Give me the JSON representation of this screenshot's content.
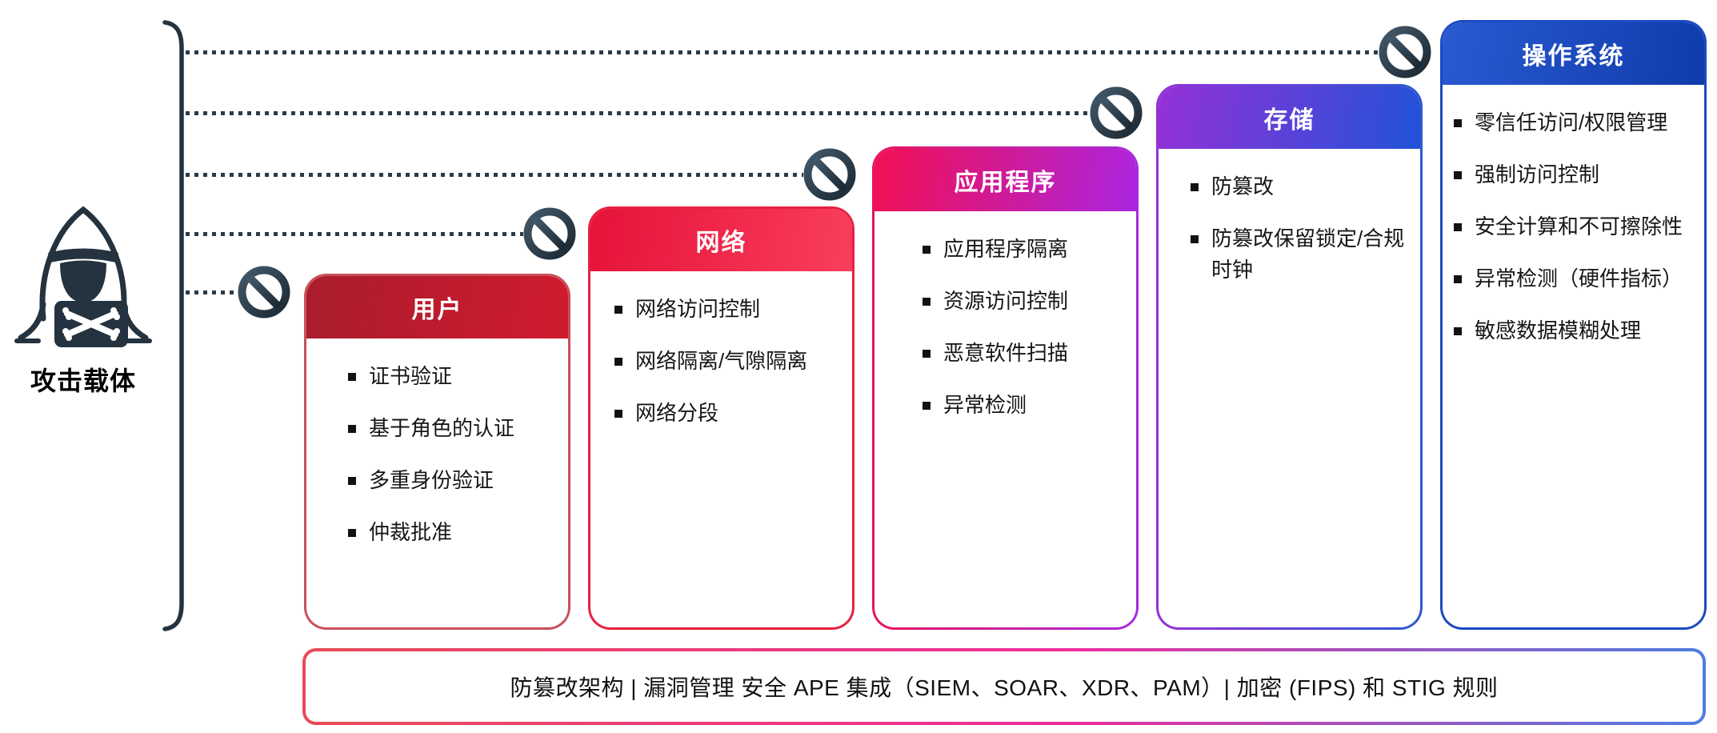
{
  "attacker": {
    "label": "攻击载体",
    "icon": "hacker-icon"
  },
  "layers": [
    {
      "id": "user",
      "title": "用户",
      "items": [
        "证书验证",
        "基于角色的认证",
        "多重身份验证",
        "仲裁批准"
      ],
      "header_gradient": [
        "#a91d2d",
        "#d01b2e"
      ],
      "border_gradient": [
        "#c9505a",
        "#c9505a"
      ]
    },
    {
      "id": "network",
      "title": "网络",
      "items": [
        "网络访问控制",
        "网络隔离/气隙隔离",
        "网络分段"
      ],
      "header_gradient": [
        "#e6123a",
        "#f93e5d"
      ],
      "border_gradient": [
        "#e62140",
        "#e62140"
      ]
    },
    {
      "id": "application",
      "title": "应用程序",
      "items": [
        "应用程序隔离",
        "资源访问控制",
        "恶意软件扫描",
        "异常检测"
      ],
      "header_gradient": [
        "#f21052",
        "#ab25e0"
      ],
      "border_gradient": [
        "#e9145e",
        "#a72ae0"
      ]
    },
    {
      "id": "storage",
      "title": "存储",
      "items": [
        "防篡改",
        "防篡改保留锁定/合规时钟"
      ],
      "header_gradient": [
        "#9431d7",
        "#2152d8"
      ],
      "border_gradient": [
        "#9431d7",
        "#2c58d2"
      ]
    },
    {
      "id": "os",
      "title": "操作系统",
      "items": [
        "零信任访问/权限管理",
        "强制访问控制",
        "安全计算和不可擦除性",
        "异常检测（硬件指标）",
        "敏感数据模糊处理"
      ],
      "header_gradient": [
        "#2a5ad2",
        "#0f3cab"
      ],
      "border_gradient": [
        "#1c4ac2",
        "#1c4ac2"
      ]
    }
  ],
  "prohibition_icon": "no-entry-icon",
  "footer": {
    "text": "防篡改架构 | 漏洞管理 安全 APE 集成（SIEM、SOAR、XDR、PAM）| 加密 (FIPS) 和 STIG 规则"
  },
  "colors": {
    "ink": "#24333f",
    "header_text": "#ffffff",
    "item_text": "#161616",
    "sign_gradient": [
      "#43596a",
      "#1b2832"
    ],
    "footer_border": [
      "#e84b55",
      "#ec2d9c",
      "#4d7ce2"
    ]
  }
}
